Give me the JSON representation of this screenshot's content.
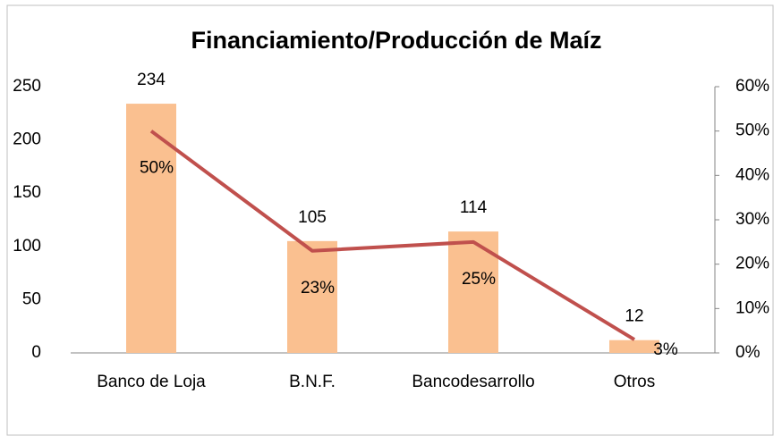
{
  "chart_data": {
    "type": "bar",
    "title": "Financiamiento/Producción de Maíz",
    "categories": [
      "Banco de Loja",
      "B.N.F.",
      "Bancodesarrollo",
      "Otros"
    ],
    "series": [
      {
        "type": "bar",
        "color": "#fac090",
        "values": [
          234,
          105,
          114,
          12
        ]
      },
      {
        "type": "line",
        "axis": "y2",
        "color": "#c0504d",
        "values": [
          50,
          23,
          25,
          3
        ],
        "value_labels": [
          "50%",
          "23%",
          "25%",
          "3%"
        ]
      }
    ],
    "ylim": [
      0,
      250
    ],
    "yticks": [
      0,
      50,
      100,
      150,
      200,
      250
    ],
    "y2lim": [
      0,
      60
    ],
    "y2ticks": [
      {
        "value": 0,
        "label": "0%"
      },
      {
        "value": 10,
        "label": "10%"
      },
      {
        "value": 20,
        "label": "20%"
      },
      {
        "value": 30,
        "label": "30%"
      },
      {
        "value": 40,
        "label": "40%"
      },
      {
        "value": 50,
        "label": "50%"
      },
      {
        "value": 60,
        "label": "60%"
      }
    ],
    "grid": false
  }
}
